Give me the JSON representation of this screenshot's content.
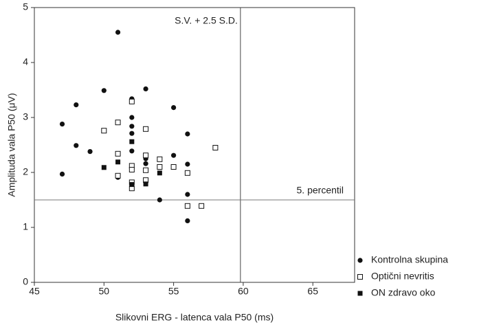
{
  "chart_data": {
    "type": "scatter",
    "xlabel": "Slikovni ERG - latenca vala P50 (ms)",
    "ylabel": "Amplituda vala P50 (μV)",
    "xlim": [
      45,
      68
    ],
    "xticks": [
      45,
      50,
      55,
      60,
      65
    ],
    "ylim": [
      0,
      5
    ],
    "yticks": [
      0,
      1,
      2,
      3,
      4,
      5
    ],
    "legend": "right-bottom",
    "ref_lines": [
      {
        "axis": "x",
        "value": 59.8,
        "label": "S.V. + 2.5 S.D."
      },
      {
        "axis": "y",
        "value": 1.5,
        "label": "5. percentil"
      }
    ],
    "series": [
      {
        "name": "Kontrolna skupina",
        "marker": "circle",
        "color": "#111111",
        "x": [
          47,
          47,
          48,
          48,
          49,
          50,
          51,
          51,
          52,
          52,
          52,
          52,
          52,
          53,
          53,
          53,
          54,
          55,
          55,
          56,
          56,
          56,
          56
        ],
        "values": [
          2.88,
          1.97,
          3.23,
          2.49,
          2.38,
          3.49,
          4.55,
          1.91,
          3.34,
          3.0,
          2.84,
          2.71,
          2.39,
          3.52,
          2.25,
          2.16,
          1.5,
          3.18,
          2.31,
          2.7,
          2.15,
          1.6,
          1.12
        ]
      },
      {
        "name": "Optični nevritis",
        "marker": "square-open",
        "color": "#111111",
        "x": [
          50,
          51,
          51,
          51,
          52,
          52,
          52,
          52,
          52,
          53,
          53,
          53,
          53,
          54,
          54,
          55,
          56,
          56,
          57,
          58
        ],
        "values": [
          2.76,
          2.91,
          2.34,
          1.94,
          3.29,
          2.12,
          2.05,
          1.82,
          1.71,
          2.79,
          2.31,
          2.04,
          1.86,
          2.24,
          2.1,
          2.1,
          1.99,
          1.39,
          1.39,
          2.45
        ]
      },
      {
        "name": "ON zdravo oko",
        "marker": "square",
        "color": "#111111",
        "x": [
          50,
          51,
          52,
          52,
          53,
          54
        ],
        "values": [
          2.09,
          2.19,
          2.56,
          1.78,
          1.79,
          1.99
        ]
      }
    ]
  }
}
